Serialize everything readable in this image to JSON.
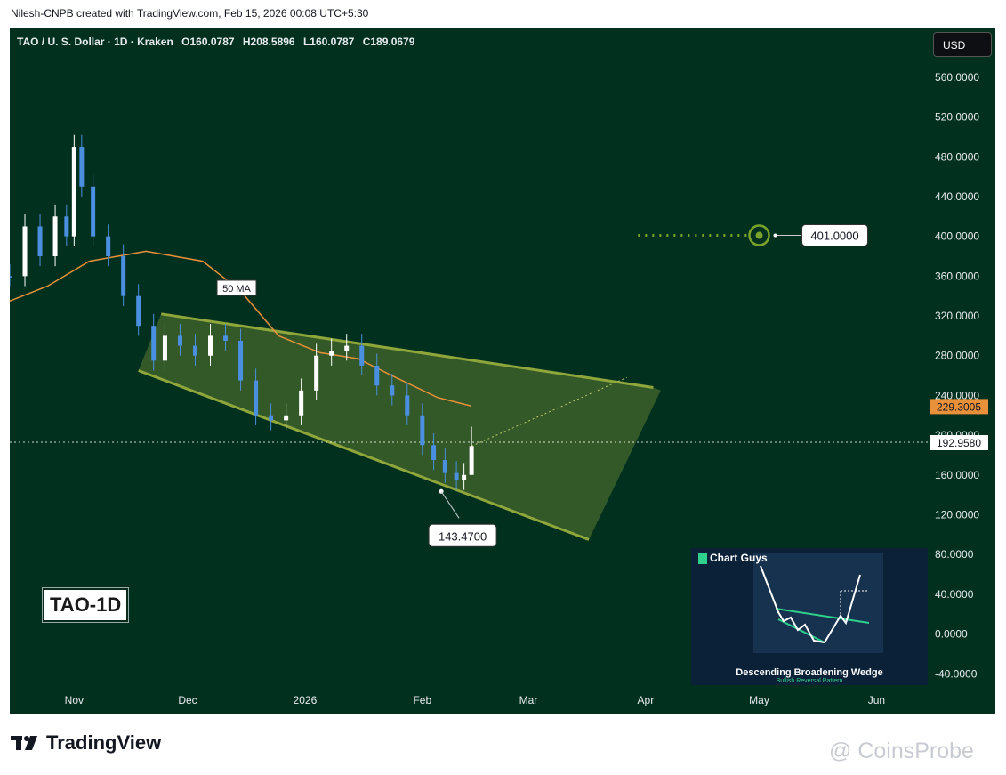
{
  "header_text": "Nilesh-CNPB created with TradingView.com, Feb 15, 2026 00:08 UTC+5:30",
  "symbol_line": {
    "name": "TAO / U. S. Dollar · 1D · Kraken",
    "open": "O160.0787",
    "high": "H208.5896",
    "low": "L160.0787",
    "close": "C189.0679"
  },
  "currency_button": "USD",
  "chart_tag": "TAO-1D",
  "colors": {
    "background": "#02301f",
    "candle": "#4a8fe0",
    "candle_up": "#ffffff",
    "ma": "#e8903a",
    "wedge": "#8fa63a",
    "target": "#7aa32a"
  },
  "chart_data": {
    "type": "candlestick",
    "symbol": "TAO / U. S. Dollar",
    "interval": "1D",
    "exchange": "Kraken",
    "x_ticks": [
      {
        "label": "Nov",
        "date": "2025-11-01"
      },
      {
        "label": "Dec",
        "date": "2025-12-01"
      },
      {
        "label": "2026",
        "date": "2026-01-01"
      },
      {
        "label": "Feb",
        "date": "2026-02-01"
      },
      {
        "label": "Mar",
        "date": "2026-03-01"
      },
      {
        "label": "Apr",
        "date": "2026-04-01"
      },
      {
        "label": "May",
        "date": "2026-05-01"
      },
      {
        "label": "Jun",
        "date": "2026-06-01"
      }
    ],
    "x_range": [
      "2025-10-15",
      "2026-06-15"
    ],
    "y_ticks": [
      "560.0000",
      "520.0000",
      "480.0000",
      "440.0000",
      "400.0000",
      "360.0000",
      "320.0000",
      "280.0000",
      "240.0000",
      "200.0000",
      "160.0000",
      "120.0000",
      "80.0000",
      "40.0000",
      "0.0000",
      "-40.0000"
    ],
    "ylim": [
      -80,
      610
    ],
    "price_series": [
      {
        "date": "2025-10-15",
        "close": 360
      },
      {
        "date": "2025-10-19",
        "close": 410
      },
      {
        "date": "2025-10-23",
        "close": 380
      },
      {
        "date": "2025-10-27",
        "close": 420
      },
      {
        "date": "2025-10-30",
        "close": 400
      },
      {
        "date": "2025-11-01",
        "close": 490
      },
      {
        "date": "2025-11-03",
        "close": 450
      },
      {
        "date": "2025-11-06",
        "close": 400
      },
      {
        "date": "2025-11-10",
        "close": 380
      },
      {
        "date": "2025-11-14",
        "close": 340
      },
      {
        "date": "2025-11-18",
        "close": 310
      },
      {
        "date": "2025-11-22",
        "close": 275
      },
      {
        "date": "2025-11-25",
        "close": 300
      },
      {
        "date": "2025-11-29",
        "close": 290
      },
      {
        "date": "2025-12-03",
        "close": 280
      },
      {
        "date": "2025-12-07",
        "close": 300
      },
      {
        "date": "2025-12-11",
        "close": 295
      },
      {
        "date": "2025-12-15",
        "close": 255
      },
      {
        "date": "2025-12-19",
        "close": 220
      },
      {
        "date": "2025-12-23",
        "close": 215
      },
      {
        "date": "2025-12-27",
        "close": 220
      },
      {
        "date": "2025-12-31",
        "close": 245
      },
      {
        "date": "2026-01-04",
        "close": 280
      },
      {
        "date": "2026-01-08",
        "close": 285
      },
      {
        "date": "2026-01-12",
        "close": 290
      },
      {
        "date": "2026-01-16",
        "close": 270
      },
      {
        "date": "2026-01-20",
        "close": 250
      },
      {
        "date": "2026-01-24",
        "close": 240
      },
      {
        "date": "2026-01-28",
        "close": 220
      },
      {
        "date": "2026-02-01",
        "close": 190
      },
      {
        "date": "2026-02-04",
        "close": 175
      },
      {
        "date": "2026-02-07",
        "close": 162
      },
      {
        "date": "2026-02-10",
        "close": 155
      },
      {
        "date": "2026-02-12",
        "close": 160
      },
      {
        "date": "2026-02-14",
        "close": 189.0679
      }
    ],
    "last_bar": {
      "open": 160.0787,
      "high": 208.5896,
      "low": 160.0787,
      "close": 189.0679
    },
    "ma_label": "50 MA",
    "ma_series": [
      {
        "date": "2025-10-15",
        "value": 335
      },
      {
        "date": "2025-10-25",
        "value": 350
      },
      {
        "date": "2025-11-05",
        "value": 375
      },
      {
        "date": "2025-11-20",
        "value": 385
      },
      {
        "date": "2025-12-05",
        "value": 375
      },
      {
        "date": "2025-12-15",
        "value": 345
      },
      {
        "date": "2025-12-25",
        "value": 300
      },
      {
        "date": "2026-01-05",
        "value": 283
      },
      {
        "date": "2026-01-15",
        "value": 277
      },
      {
        "date": "2026-01-25",
        "value": 258
      },
      {
        "date": "2026-02-05",
        "value": 238
      },
      {
        "date": "2026-02-14",
        "value": 229.3005
      }
    ],
    "ma_last_label": "229.3005",
    "current_price_label": "192.9580",
    "current_price": 192.958,
    "low_label": "143.4700",
    "low_point": {
      "date": "2026-02-06",
      "value": 143.47
    },
    "target_label": "401.0000",
    "target": {
      "date": "2026-05-01",
      "value": 401
    },
    "target_line_start": "2026-03-30",
    "wedge": {
      "upper": [
        {
          "date": "2025-11-24",
          "value": 322
        },
        {
          "date": "2026-04-03",
          "value": 248
        }
      ],
      "lower": [
        {
          "date": "2025-11-18",
          "value": 265
        },
        {
          "date": "2026-03-17",
          "value": 95
        }
      ],
      "far_edge": [
        {
          "date": "2026-03-17",
          "value": 95
        },
        {
          "date": "2026-04-05",
          "value": 245
        }
      ]
    },
    "projection": [
      {
        "date": "2026-02-14",
        "value": 189
      },
      {
        "date": "2026-03-27",
        "value": 258
      }
    ],
    "inset": {
      "title": "Descending Broadening Wedge",
      "subtitle": "Bullish Reversal Pattern",
      "brand": "Chart Guys"
    }
  },
  "footer": {
    "brand": "TradingView",
    "watermark": "@ CoinsProbe"
  }
}
